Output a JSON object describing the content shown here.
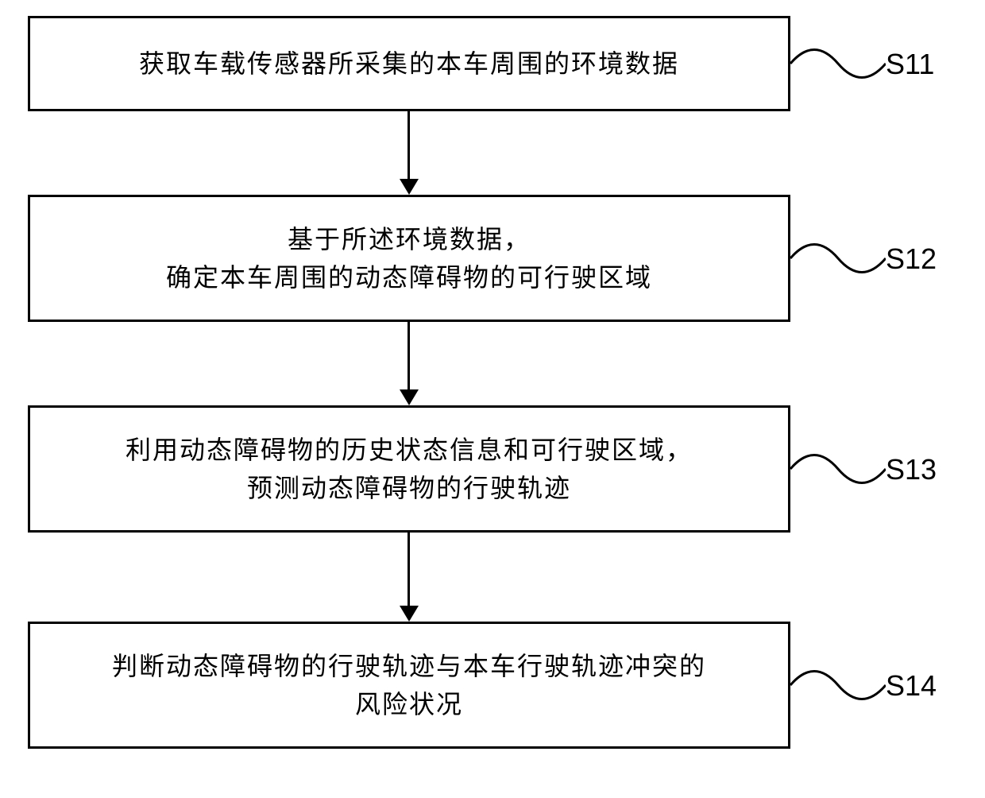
{
  "flowchart": {
    "type": "flowchart",
    "background_color": "#ffffff",
    "border_color": "#000000",
    "border_width": 3,
    "text_color": "#000000",
    "font_size": 32,
    "label_font_size": 36,
    "steps": [
      {
        "id": "S11",
        "text": "获取车载传感器所采集的本车周围的环境数据",
        "label": "S11"
      },
      {
        "id": "S12",
        "text": "基于所述环境数据，\n确定本车周围的动态障碍物的可行驶区域",
        "label": "S12"
      },
      {
        "id": "S13",
        "text": "利用动态障碍物的历史状态信息和可行驶区域，\n预测动态障碍物的行驶轨迹",
        "label": "S13"
      },
      {
        "id": "S14",
        "text": "判断动态障碍物的行驶轨迹与本车行驶轨迹冲突的\n风险状况",
        "label": "S14"
      }
    ]
  }
}
